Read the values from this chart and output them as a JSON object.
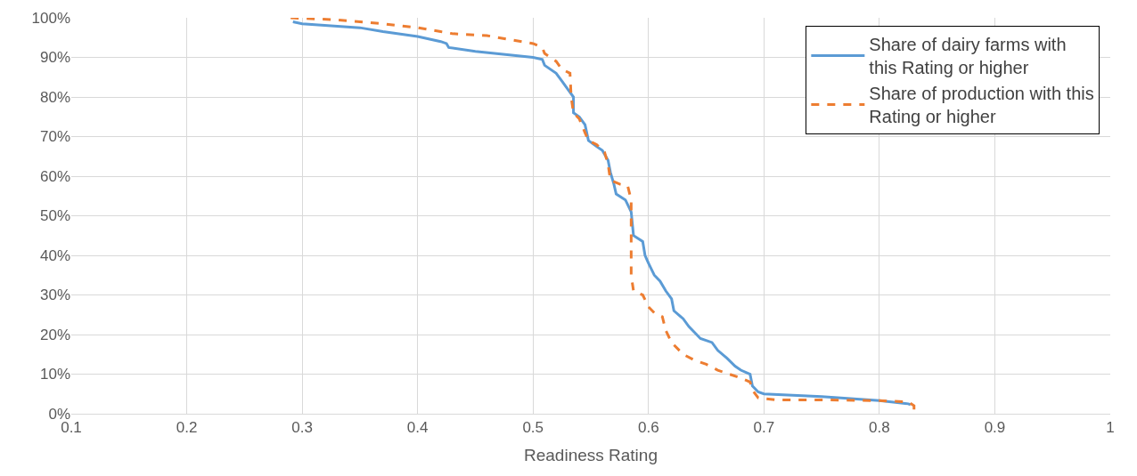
{
  "chart_data": {
    "type": "line",
    "xlabel": "Readiness Rating",
    "xlim": [
      0.1,
      1
    ],
    "xticks": [
      0.1,
      0.2,
      0.3,
      0.4,
      0.5,
      0.6,
      0.7,
      0.8,
      0.9,
      1
    ],
    "ylim": [
      0,
      100
    ],
    "yticks": [
      {
        "value": 0,
        "label": "0%"
      },
      {
        "value": 10,
        "label": "10%"
      },
      {
        "value": 20,
        "label": "20%"
      },
      {
        "value": 30,
        "label": "30%"
      },
      {
        "value": 40,
        "label": "40%"
      },
      {
        "value": 50,
        "label": "50%"
      },
      {
        "value": 60,
        "label": "60%"
      },
      {
        "value": 70,
        "label": "70%"
      },
      {
        "value": 80,
        "label": "80%"
      },
      {
        "value": 90,
        "label": "90%"
      },
      {
        "value": 100,
        "label": "100%"
      }
    ],
    "grid": true,
    "legend": "top right",
    "marker": "none",
    "series": [
      {
        "name": "Share of dairy farms with this Rating or higher",
        "color": "#5b9bd5",
        "line_style": "solid",
        "x": [
          0.292,
          0.3,
          0.35,
          0.37,
          0.4,
          0.42,
          0.425,
          0.427,
          0.45,
          0.5,
          0.508,
          0.51,
          0.52,
          0.525,
          0.53,
          0.535,
          0.535,
          0.54,
          0.545,
          0.548,
          0.555,
          0.56,
          0.565,
          0.567,
          0.57,
          0.572,
          0.58,
          0.585,
          0.587,
          0.595,
          0.597,
          0.6,
          0.605,
          0.61,
          0.615,
          0.62,
          0.622,
          0.63,
          0.635,
          0.64,
          0.645,
          0.655,
          0.66,
          0.668,
          0.675,
          0.68,
          0.688,
          0.69,
          0.695,
          0.7,
          0.75,
          0.8,
          0.825,
          0.827
        ],
        "values": [
          99,
          98.5,
          97.5,
          96.5,
          95.3,
          94,
          93.5,
          92.5,
          91.5,
          90,
          89.5,
          88,
          86,
          84,
          82,
          80,
          76,
          75,
          73,
          69,
          67.5,
          66.5,
          64,
          61,
          58,
          55.5,
          54,
          51,
          45,
          43.5,
          40,
          38,
          35,
          33.5,
          31,
          29,
          26,
          24,
          22,
          20.5,
          19,
          18,
          16,
          14,
          12,
          11,
          10,
          7,
          5.5,
          5,
          4.3,
          3.3,
          2.5,
          2.3
        ]
      },
      {
        "name": "Share of production with this Rating or higher",
        "color": "#ed7d31",
        "line_style": "dashed",
        "x": [
          0.29,
          0.33,
          0.37,
          0.4,
          0.42,
          0.43,
          0.46,
          0.48,
          0.5,
          0.508,
          0.51,
          0.515,
          0.52,
          0.525,
          0.532,
          0.533,
          0.535,
          0.54,
          0.545,
          0.548,
          0.555,
          0.562,
          0.565,
          0.567,
          0.575,
          0.582,
          0.585,
          0.585,
          0.585,
          0.587,
          0.595,
          0.6,
          0.605,
          0.612,
          0.615,
          0.62,
          0.63,
          0.64,
          0.65,
          0.66,
          0.67,
          0.68,
          0.688,
          0.69,
          0.695,
          0.71,
          0.75,
          0.8,
          0.825,
          0.83,
          0.83
        ],
        "values": [
          100,
          99.5,
          98.5,
          97.5,
          96.5,
          96,
          95.5,
          94.5,
          93.5,
          92.5,
          91,
          90,
          89,
          87,
          86,
          80,
          76,
          74.5,
          71,
          69,
          68,
          66,
          63,
          59,
          58,
          57.5,
          54,
          45,
          35,
          31,
          30,
          27,
          25.5,
          24.5,
          21,
          18,
          15,
          13.5,
          12.5,
          11,
          10,
          9,
          8,
          6,
          4,
          3.5,
          3.5,
          3.3,
          3,
          2,
          1
        ]
      }
    ]
  }
}
